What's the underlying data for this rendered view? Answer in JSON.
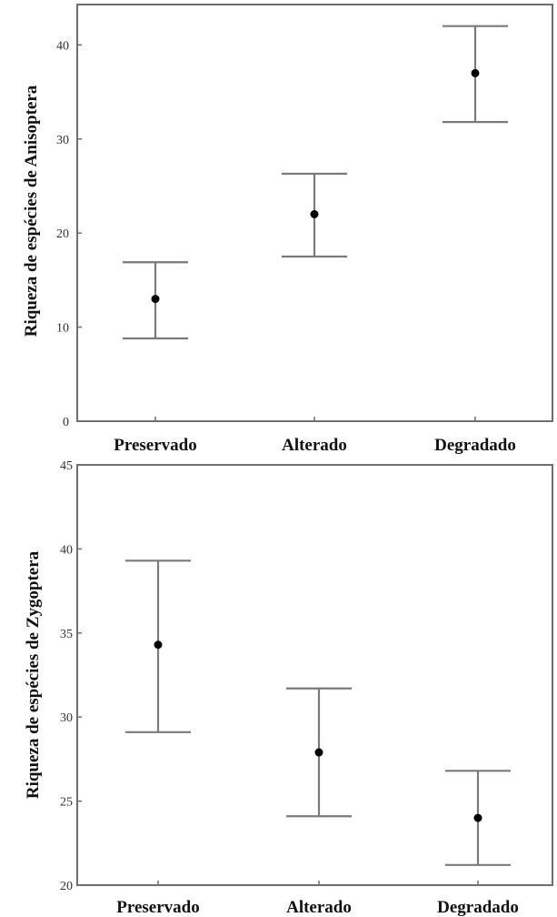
{
  "chart_data": [
    {
      "type": "scatter",
      "ylabel": "Riqueza de espécies de Anisoptera",
      "xlabel": "",
      "categories": [
        "Preservado",
        "Alterado",
        "Degradado"
      ],
      "ylim": [
        0,
        44
      ],
      "yticks": [
        "0",
        "10",
        "20",
        "30",
        "40"
      ],
      "series": [
        {
          "mean": [
            13,
            22,
            37
          ],
          "lower": [
            8.8,
            17.5,
            31.8
          ],
          "upper": [
            16.9,
            26.3,
            42
          ]
        }
      ],
      "grid": false
    },
    {
      "type": "scatter",
      "ylabel": "Riqueza de espécies de Zygoptera",
      "xlabel": "",
      "categories": [
        "Preservado",
        "Alterado",
        "Degradado"
      ],
      "ylim": [
        20,
        45
      ],
      "yticks": [
        "20",
        "25",
        "30",
        "35",
        "40",
        "45"
      ],
      "series": [
        {
          "mean": [
            34.3,
            27.9,
            24
          ],
          "lower": [
            29.1,
            24.1,
            21.2
          ],
          "upper": [
            39.3,
            31.7,
            26.8
          ]
        }
      ],
      "grid": false
    }
  ],
  "colors": {
    "frame": "#6e6e6e",
    "errorbar": "#7a7a7a",
    "mean": "#000000"
  }
}
